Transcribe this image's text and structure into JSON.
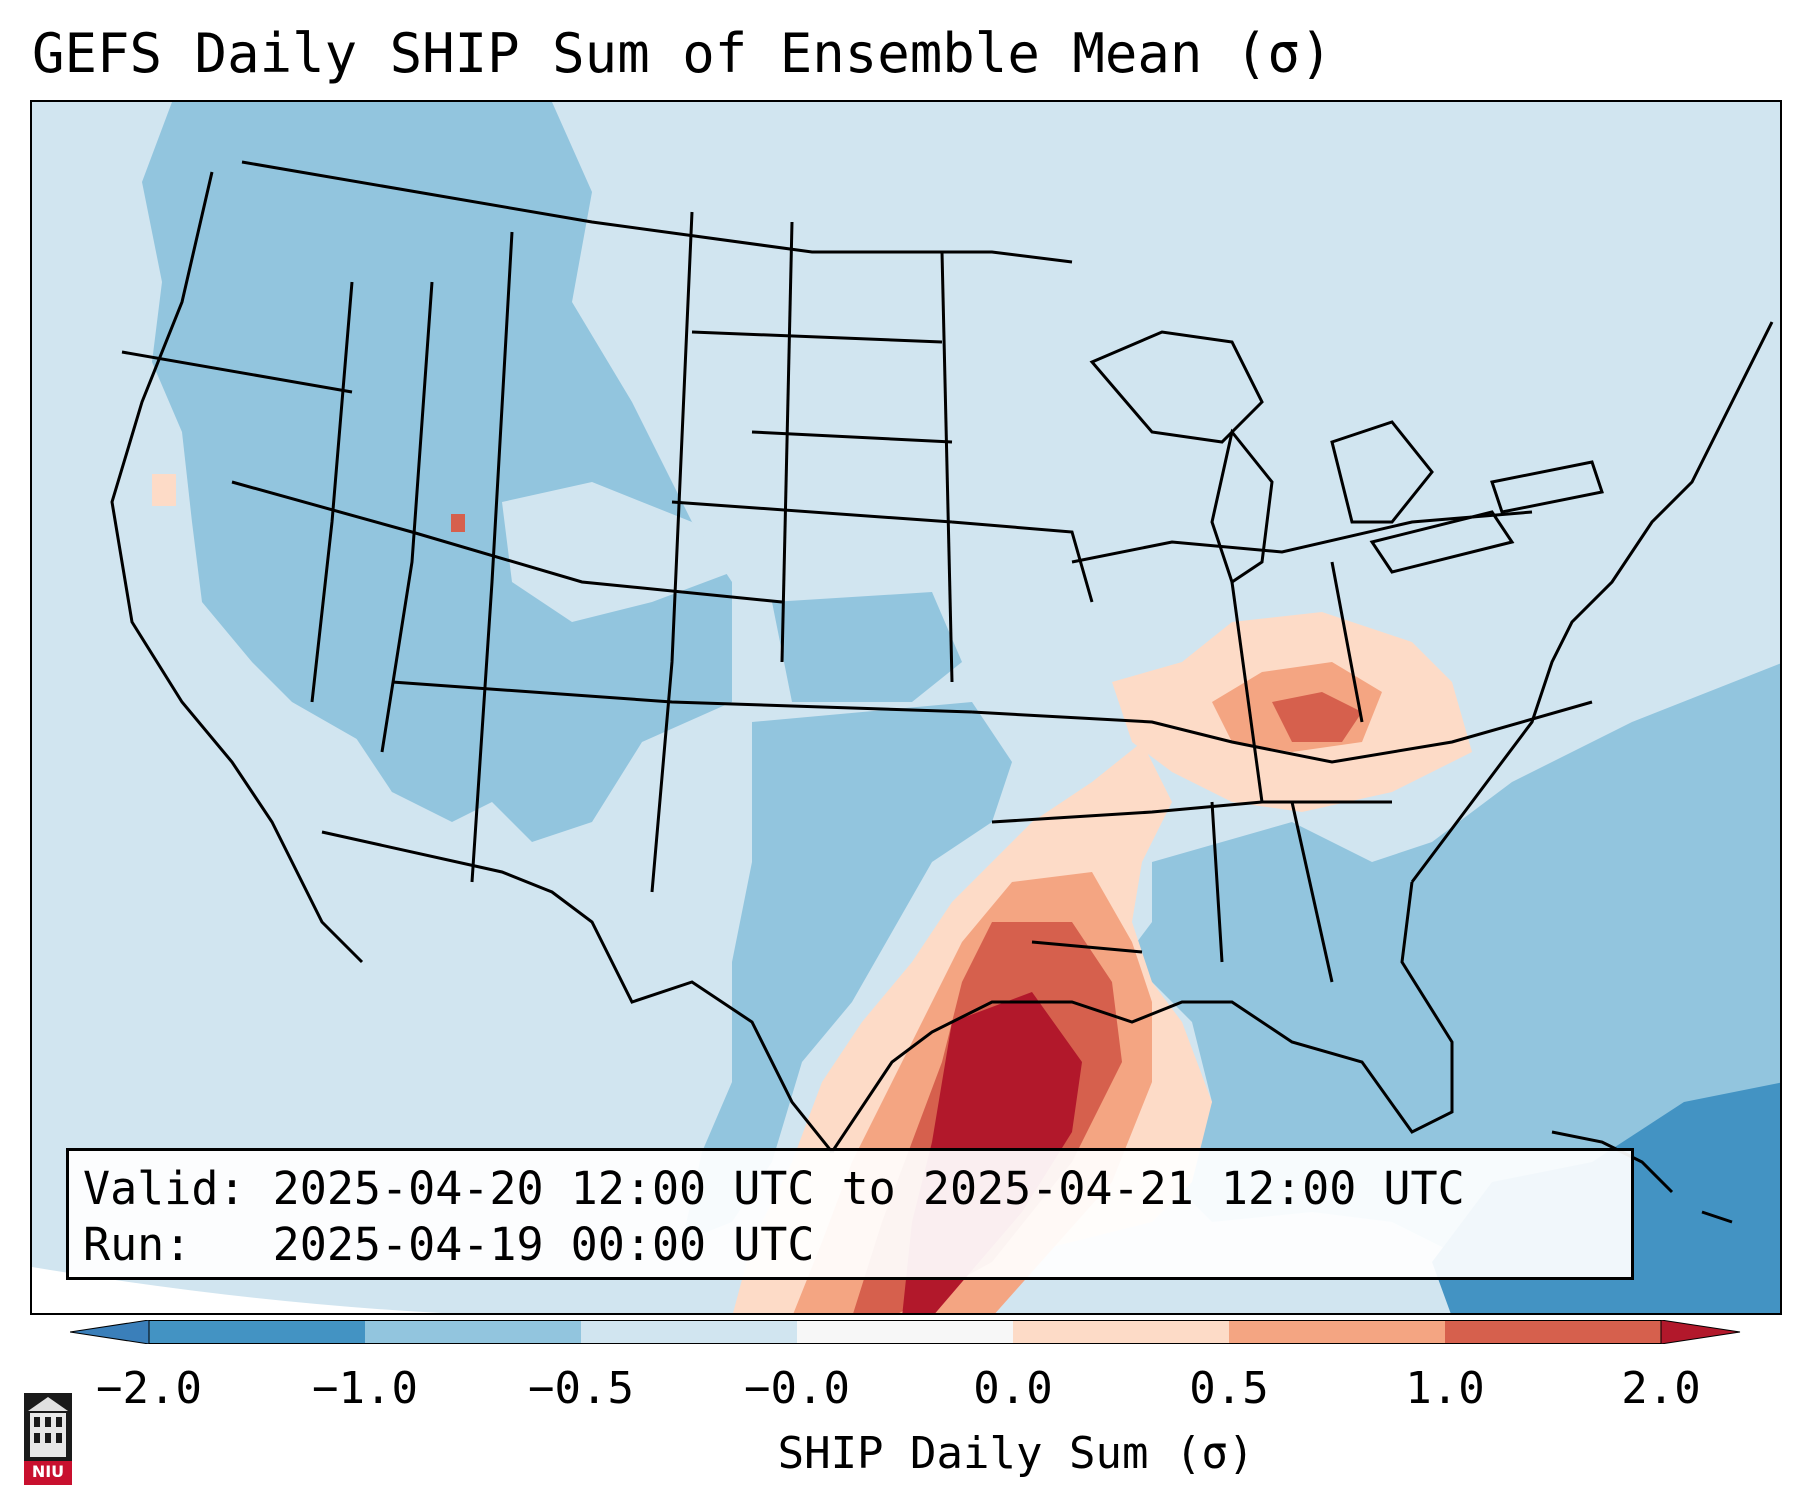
{
  "title": "GEFS Daily SHIP Sum of Ensemble Mean (σ)",
  "info": {
    "valid": "Valid: 2025-04-20 12:00 UTC to 2025-04-21 12:00 UTC",
    "run": "Run:   2025-04-19 00:00 UTC"
  },
  "colorbar": {
    "label": "SHIP Daily Sum (σ)",
    "ticks": [
      "−2.0",
      "−1.0",
      "−0.5",
      "−0.0",
      "0.0",
      "0.5",
      "1.0",
      "2.0"
    ],
    "colors": {
      "under": "#3a7fba",
      "bins": [
        "#4393c3",
        "#92c5de",
        "#d1e5f0",
        "#f7f7f7",
        "#fddbc7",
        "#f4a582",
        "#d6604d"
      ],
      "over": "#b2182b"
    }
  },
  "logo": {
    "text": "NIU",
    "icon": "university-tower-icon"
  }
}
